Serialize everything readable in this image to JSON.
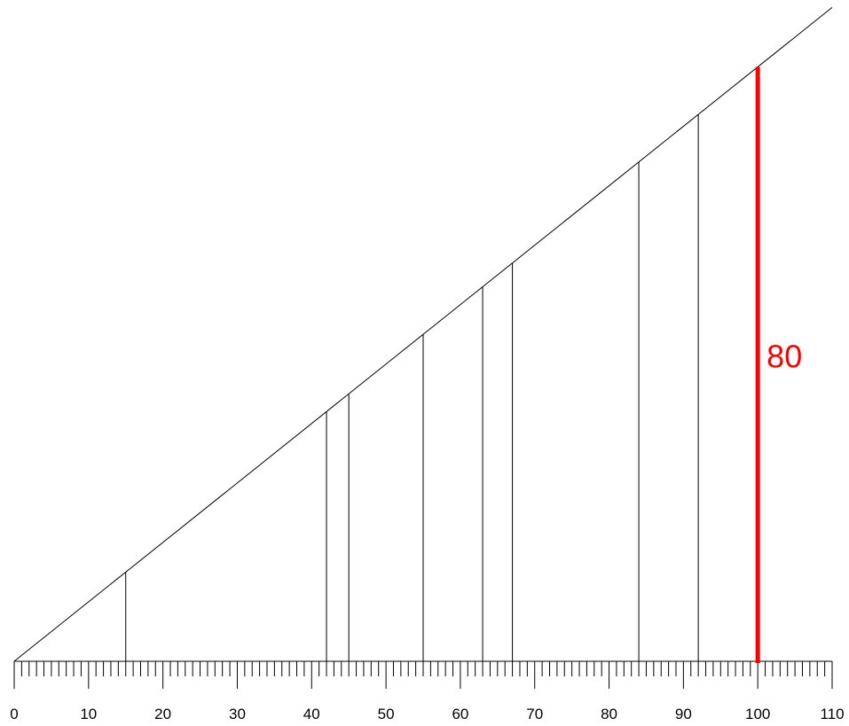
{
  "chart_data": {
    "type": "line",
    "title": "",
    "xlabel": "",
    "ylabel": "",
    "xlim": [
      0,
      110
    ],
    "line_slope": 0.8,
    "line": {
      "x": [
        0,
        110
      ],
      "y": [
        0,
        88
      ]
    },
    "vertical_lines": [
      {
        "x": 15,
        "height": 12
      },
      {
        "x": 42,
        "height": 33.6
      },
      {
        "x": 45,
        "height": 36
      },
      {
        "x": 55,
        "height": 44
      },
      {
        "x": 63,
        "height": 50.4
      },
      {
        "x": 67,
        "height": 53.6
      },
      {
        "x": 84,
        "height": 67.2
      },
      {
        "x": 92,
        "height": 73.6
      }
    ],
    "highlight": {
      "x": 100,
      "value": 80,
      "label": "80",
      "color": "#ff0000"
    },
    "x_ticks": [
      "0",
      "10",
      "20",
      "30",
      "40",
      "50",
      "60",
      "70",
      "80",
      "90",
      "100",
      "110"
    ],
    "minor_tick_step": 1,
    "grid": false,
    "legend": "none"
  }
}
